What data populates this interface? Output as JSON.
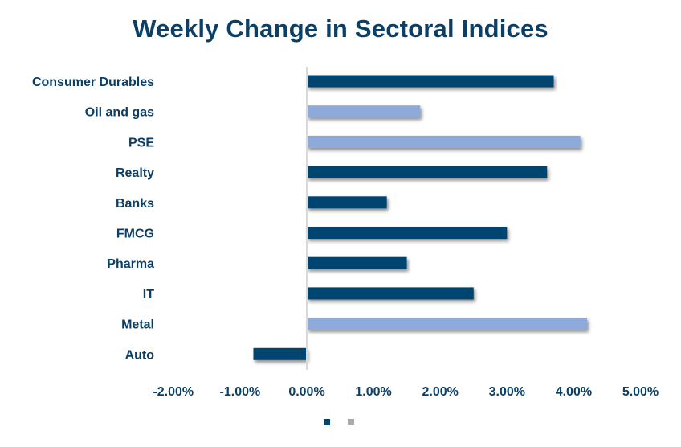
{
  "chart_data": {
    "type": "bar",
    "orientation": "horizontal",
    "title": "Weekly Change in Sectoral Indices",
    "xlabel": "",
    "ylabel": "",
    "categories": [
      "Consumer Durables",
      "Oil and gas",
      "PSE",
      "Realty",
      "Banks",
      "FMCG",
      "Pharma",
      "IT",
      "Metal",
      "Auto"
    ],
    "values": [
      3.7,
      1.7,
      4.1,
      3.6,
      1.2,
      3.0,
      1.5,
      2.5,
      4.2,
      -0.8
    ],
    "value_unit": "%",
    "bar_colors": [
      "#004470",
      "#8eaadb",
      "#8eaadb",
      "#004470",
      "#004470",
      "#004470",
      "#004470",
      "#004470",
      "#8eaadb",
      "#004470"
    ],
    "xlim": [
      -2.0,
      5.0
    ],
    "xticks": [
      -2,
      -1,
      0,
      1,
      2,
      3,
      4,
      5
    ],
    "xtick_labels": [
      "-2.00%",
      "-1.00%",
      "0.00%",
      "1.00%",
      "2.00%",
      "3.00%",
      "4.00%",
      "5.00%"
    ],
    "grid": false,
    "legend": {
      "placement": "bottom",
      "entries": [
        {
          "label": "",
          "color": "#004470"
        },
        {
          "label": "",
          "color": "#a9a9a9"
        }
      ]
    }
  },
  "colors": {
    "title": "#0b3f66",
    "axis": "#d9d9d9"
  }
}
